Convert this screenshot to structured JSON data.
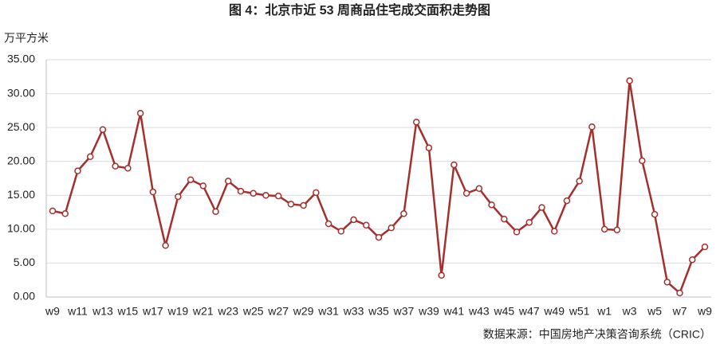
{
  "chart_data": {
    "type": "line",
    "title": "图 4：北京市近 53 周商品住宅成交面积走势图",
    "y_label": "万平方米",
    "source": "数据来源：中国房地产决策咨询系统（CRIC）",
    "categories": [
      "w9",
      null,
      "w11",
      null,
      "w13",
      null,
      "w15",
      null,
      "w17",
      null,
      "w19",
      null,
      "w21",
      null,
      "w23",
      null,
      "w25",
      null,
      "w27",
      null,
      "w29",
      null,
      "w31",
      null,
      "w33",
      null,
      "w35",
      null,
      "w37",
      null,
      "w39",
      null,
      "w41",
      null,
      "w43",
      null,
      "w45",
      null,
      "w47",
      null,
      "w49",
      null,
      "w51",
      null,
      "w1",
      null,
      "w3",
      null,
      "w5",
      null,
      "w7",
      null,
      "w9"
    ],
    "series": [
      {
        "name": "成交面积",
        "color": "#a3302d",
        "values": [
          12.7,
          12.3,
          18.6,
          20.7,
          24.7,
          19.3,
          19.0,
          27.1,
          15.5,
          7.6,
          14.8,
          17.3,
          16.4,
          12.6,
          17.1,
          15.6,
          15.3,
          15.0,
          14.9,
          13.7,
          13.5,
          15.4,
          10.8,
          9.7,
          11.4,
          10.6,
          8.8,
          10.2,
          12.3,
          25.8,
          22.0,
          3.2,
          19.5,
          15.3,
          16.0,
          13.6,
          11.5,
          9.6,
          11.0,
          13.2,
          9.7,
          14.2,
          17.1,
          25.1,
          10.0,
          9.9,
          31.9,
          20.1,
          12.2,
          2.2,
          0.6,
          5.5,
          7.4
        ]
      }
    ],
    "ylim": [
      0,
      35
    ],
    "yticks": [
      {
        "value": 0,
        "label": "0.00"
      },
      {
        "value": 5,
        "label": "5.00"
      },
      {
        "value": 10,
        "label": "10.00"
      },
      {
        "value": 15,
        "label": "15.00"
      },
      {
        "value": 20,
        "label": "20.00"
      },
      {
        "value": 25,
        "label": "25.00"
      },
      {
        "value": 30,
        "label": "30.00"
      },
      {
        "value": 35,
        "label": "35.00"
      }
    ],
    "grid": true
  }
}
